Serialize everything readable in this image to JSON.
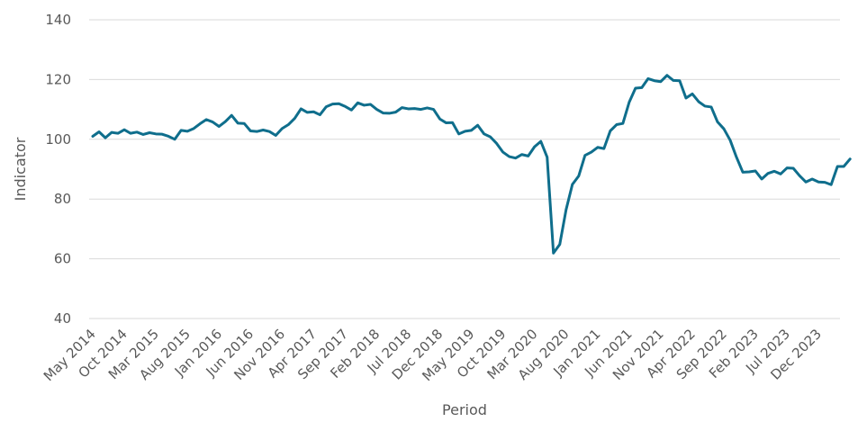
{
  "chart_data": {
    "type": "line",
    "title": "",
    "xlabel": "Period",
    "ylabel": "Indicator",
    "ylim": [
      40,
      140
    ],
    "yticks": [
      40,
      60,
      80,
      100,
      120,
      140
    ],
    "grid": true,
    "legend": "none",
    "colors": {
      "series": "#0f6e8c",
      "grid": "#d9d9d9",
      "text": "#595959"
    },
    "x_start": "May 2014",
    "x_end": "Feb 2024",
    "xtick_labels": [
      "May 2014",
      "Oct 2014",
      "Mar 2015",
      "Aug 2015",
      "Jan 2016",
      "Jun 2016",
      "Nov 2016",
      "Apr 2017",
      "Sep 2017",
      "Feb 2018",
      "Jul 2018",
      "Dec 2018",
      "May 2019",
      "Oct 2019",
      "Mar 2020",
      "Aug 2020",
      "Jan 2021",
      "Jun 2021",
      "Nov 2021",
      "Apr 2022",
      "Sep 2022",
      "Feb 2023",
      "Jul 2023",
      "Dec 2023"
    ],
    "series": [
      {
        "values": [
          101,
          102.5,
          100.5,
          102.3,
          102,
          103.2,
          102,
          102.4,
          101.6,
          102.2,
          101.8,
          101.7,
          101,
          100,
          103,
          102.7,
          103.6,
          105.2,
          106.6,
          105.8,
          104.3,
          105.9,
          108,
          105.4,
          105.3,
          102.8,
          102.6,
          103.1,
          102.6,
          101.3,
          103.6,
          104.9,
          107,
          110.2,
          109,
          109.2,
          108.2,
          110.9,
          111.8,
          111.9,
          111,
          109.8,
          112.2,
          111.4,
          111.7,
          110,
          108.8,
          108.7,
          109.1,
          110.6,
          110.2,
          110.3,
          110,
          110.5,
          110,
          106.8,
          105.5,
          105.6,
          101.8,
          102.7,
          103,
          104.7,
          101.8,
          100.8,
          98.6,
          95.7,
          94.2,
          93.7,
          94.9,
          94.4,
          97.5,
          99.3,
          94,
          61.9,
          64.8,
          76.4,
          84.9,
          87.7,
          94.6,
          95.7,
          97.3,
          96.9,
          102.8,
          104.9,
          105.3,
          112.4,
          117.1,
          117.3,
          120.3,
          119.6,
          119.3,
          121.4,
          119.7,
          119.6,
          113.8,
          115.2,
          112.6,
          111.1,
          110.8,
          105.8,
          103.5,
          99.7,
          94,
          89,
          89.1,
          89.4,
          86.7,
          88.6,
          89.3,
          88.4,
          90.4,
          90.3,
          87.8,
          85.7,
          86.7,
          85.7,
          85.6,
          84.8,
          90.9,
          90.9,
          93.4
        ]
      }
    ]
  }
}
